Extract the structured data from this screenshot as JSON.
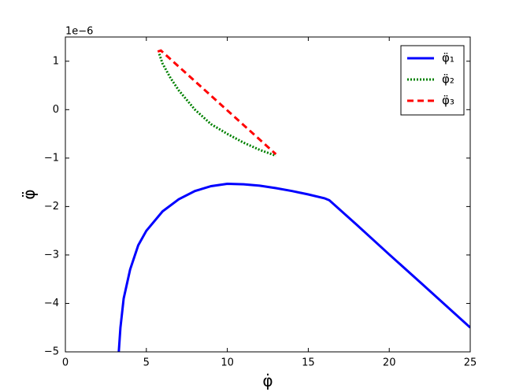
{
  "chart_data": {
    "type": "line",
    "x_label": "φ̇",
    "y_label": "φ̈",
    "y_offset_label": "1e−6",
    "xlim": [
      0,
      25
    ],
    "xticks": [
      0,
      5,
      10,
      15,
      20,
      25
    ],
    "ylim": [
      -5,
      1.5
    ],
    "yticks": [
      {
        "value": -5,
        "label": "−5"
      },
      {
        "value": -4,
        "label": "−4"
      },
      {
        "value": -3,
        "label": "−3"
      },
      {
        "value": -2,
        "label": "−2"
      },
      {
        "value": -1,
        "label": "−1"
      },
      0,
      1
    ],
    "legend": "upper right",
    "series": [
      {
        "name": "φ̈₁",
        "color": "#0000ff",
        "style": "solid",
        "x": [
          3.3,
          3.4,
          3.6,
          4,
          4.5,
          5,
          6,
          7,
          8,
          9,
          10,
          11,
          12,
          13,
          14,
          15,
          16,
          16.3,
          18,
          20,
          22,
          25
        ],
        "values": [
          -5,
          -4.5,
          -3.9,
          -3.3,
          -2.8,
          -2.5,
          -2.1,
          -1.85,
          -1.68,
          -1.58,
          -1.53,
          -1.54,
          -1.57,
          -1.62,
          -1.68,
          -1.75,
          -1.83,
          -1.87,
          -2.38,
          -2.99,
          -3.59,
          -4.5
        ]
      },
      {
        "name": "φ̈₂",
        "color": "#008000",
        "style": "dotted",
        "x": [
          5.8,
          6,
          6.5,
          7,
          8,
          9,
          10,
          11,
          12,
          13
        ],
        "values": [
          1.15,
          0.95,
          0.65,
          0.4,
          0.0,
          -0.3,
          -0.5,
          -0.68,
          -0.83,
          -0.95
        ]
      },
      {
        "name": "φ̈₃",
        "color": "#ff0000",
        "style": "dashed",
        "x": [
          5.7,
          5.9,
          13
        ],
        "values": [
          1.2,
          1.22,
          -0.92
        ]
      }
    ]
  }
}
